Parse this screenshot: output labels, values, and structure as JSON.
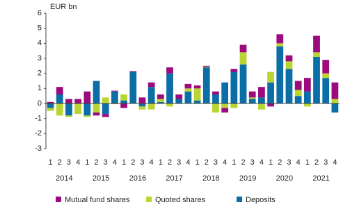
{
  "chart_data": {
    "type": "stacked-bar",
    "y_label": "EUR bn",
    "categories": [
      "1",
      "2",
      "3",
      "4",
      "1",
      "2",
      "3",
      "4",
      "1",
      "2",
      "3",
      "4",
      "1",
      "2",
      "3",
      "4",
      "1",
      "2",
      "3",
      "4",
      "1",
      "2",
      "3",
      "4",
      "1",
      "2",
      "3",
      "4",
      "1",
      "2",
      "3",
      "4"
    ],
    "year_labels": [
      "2014",
      "2015",
      "2016",
      "2017",
      "2018",
      "2019",
      "2020",
      "2021"
    ],
    "series": [
      {
        "name": "Mutual fund shares",
        "color": "#9c0a7e",
        "values": [
          0.1,
          0.5,
          0.3,
          0.3,
          0.8,
          -0.2,
          -0.2,
          0.05,
          -0.3,
          0.05,
          0.4,
          0.3,
          0.3,
          0.4,
          0.3,
          0.3,
          0.2,
          0.05,
          0.2,
          -0.3,
          0.2,
          0.5,
          0.4,
          0.7,
          -0.2,
          0.6,
          0.4,
          0.6,
          0.9,
          1.1,
          0.9,
          1.1
        ]
      },
      {
        "name": "Quoted shares",
        "color": "#b9d532",
        "values": [
          -0.2,
          -0.8,
          -0.1,
          -0.7,
          -0.1,
          -0.6,
          0.4,
          -0.05,
          0.4,
          0,
          -0.2,
          -0.4,
          0.2,
          -0.2,
          0,
          0.2,
          0.8,
          0.05,
          -0.6,
          -0.3,
          -0.3,
          0.8,
          0.1,
          -0.4,
          0.7,
          0.2,
          0.5,
          0.4,
          -0.2,
          0.3,
          0.3,
          0.3
        ]
      },
      {
        "name": "Deposits",
        "color": "#0c6ea6",
        "values": [
          -0.3,
          0.6,
          -0.8,
          0,
          -0.8,
          1.5,
          -0.7,
          0.8,
          0.2,
          2.1,
          -0.2,
          1.1,
          0.1,
          2.0,
          0.3,
          0.8,
          0.2,
          2.4,
          0.6,
          1.4,
          2.1,
          2.6,
          0.3,
          0.4,
          1.4,
          3.8,
          2.3,
          0.5,
          0.8,
          3.1,
          1.7,
          -0.6
        ]
      }
    ],
    "ylim": [
      -3,
      6
    ],
    "yticks": [
      -3,
      -2,
      -1,
      0,
      1,
      2,
      3,
      4,
      5,
      6
    ],
    "grid": false
  }
}
